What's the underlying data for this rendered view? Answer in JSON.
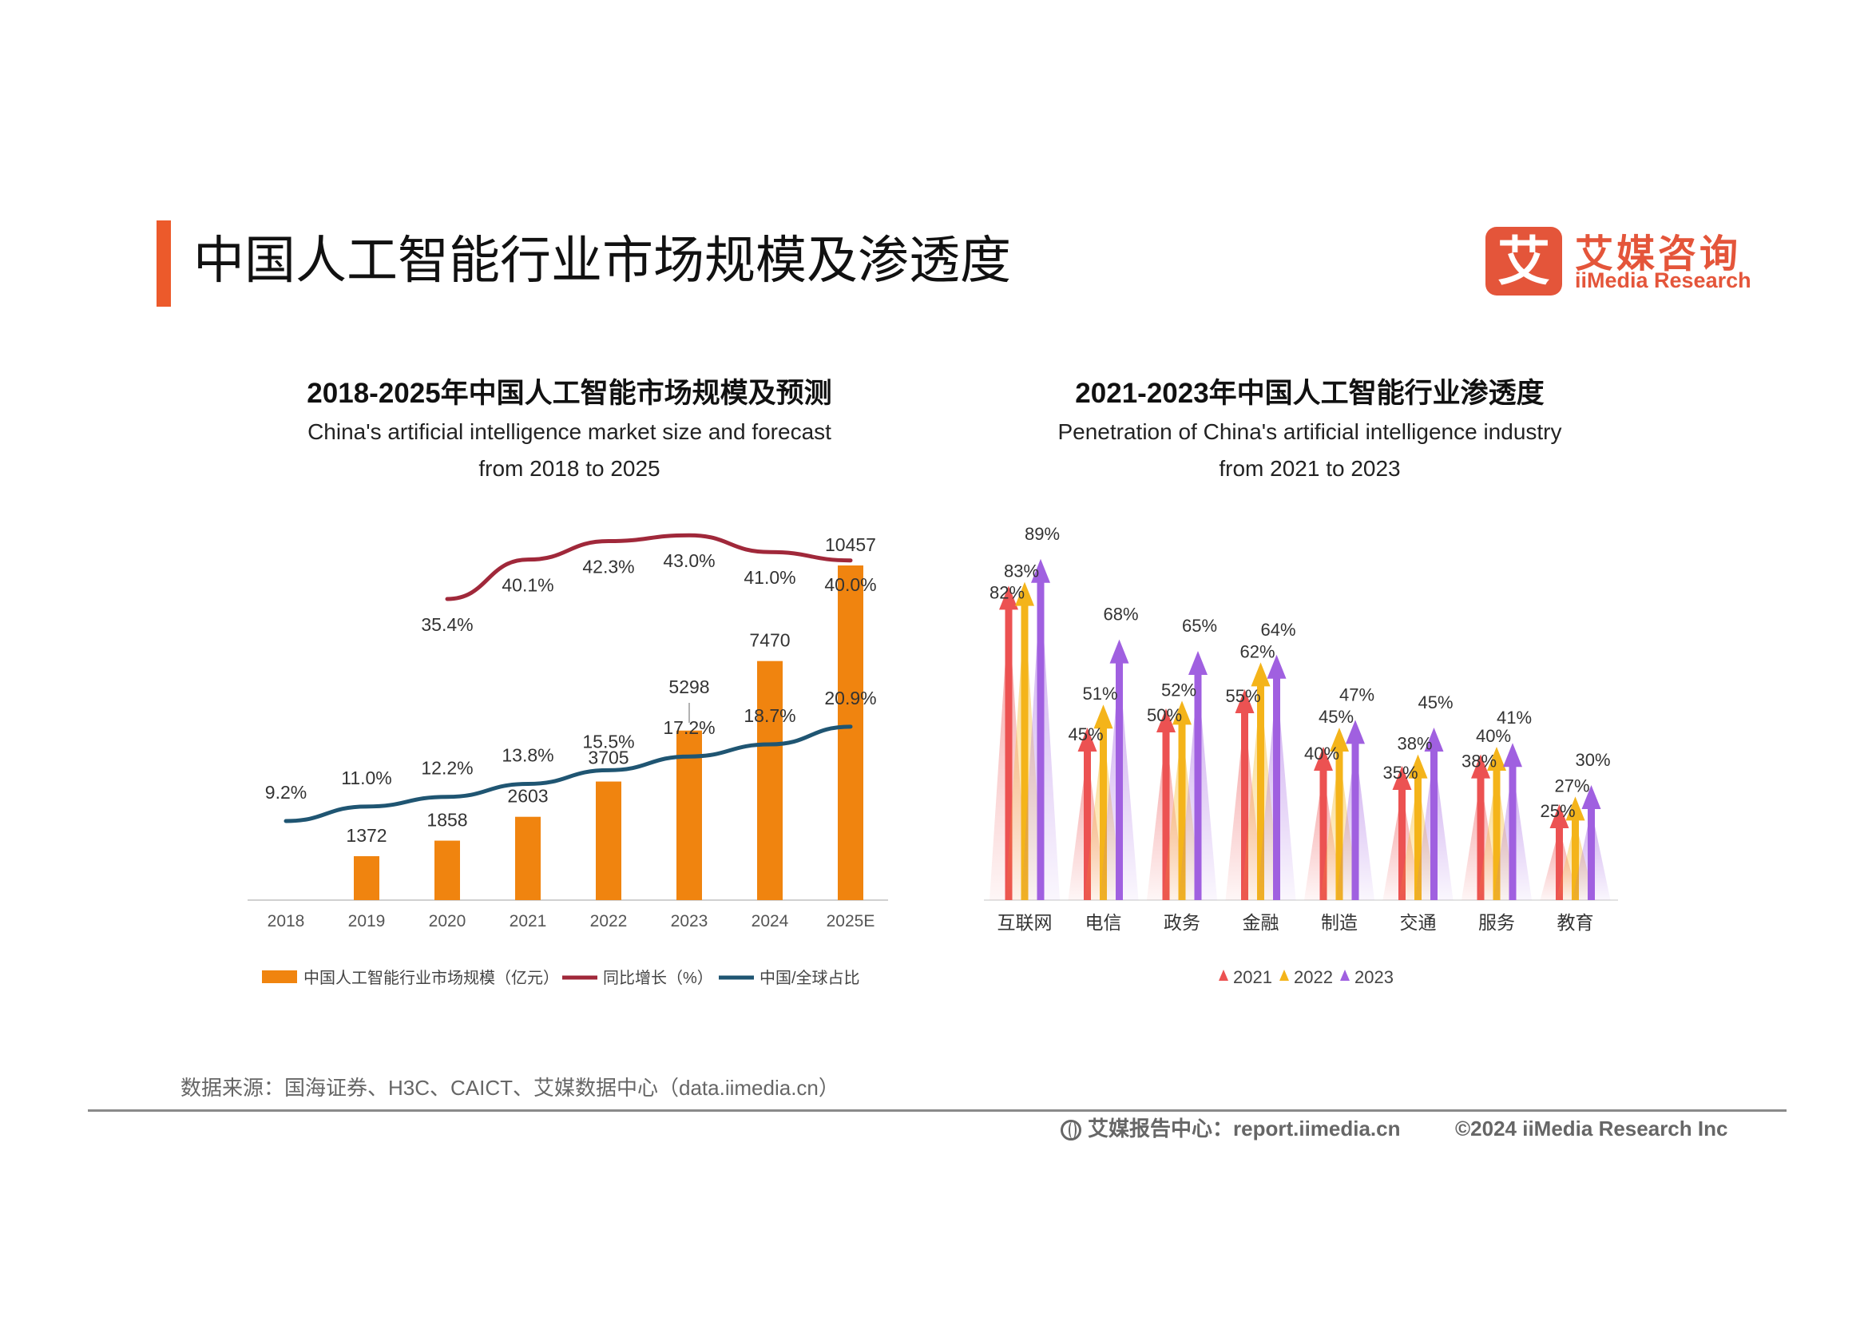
{
  "page": {
    "title": "中国人工智能行业市场规模及渗透度",
    "source": "数据来源：国海证券、H3C、CAICT、艾媒数据中心（data.iimedia.cn）",
    "footer_report": "艾媒报告中心：report.iimedia.cn",
    "footer_copyright": "©2024  iiMedia Research  Inc"
  },
  "logo": {
    "mark": "艾",
    "cn": "艾媒咨询",
    "en": "iiMedia Research"
  },
  "colors": {
    "accent": "#ec5a2b",
    "bar": "#f0840f",
    "growth_line": "#a0283a",
    "share_line": "#1f5572",
    "y2021": "#ec5252",
    "y2022": "#f4b41a",
    "y2023": "#a060e0"
  },
  "chart_data": [
    {
      "type": "bar",
      "title": "2018-2025年中国人工智能市场规模及预测",
      "subtitle_en_1": "China's artificial intelligence market size and forecast",
      "subtitle_en_2": "from 2018 to 2025",
      "categories": [
        "2018",
        "2019",
        "2020",
        "2021",
        "2022",
        "2023",
        "2024",
        "2025E"
      ],
      "series": [
        {
          "name": "中国人工智能行业市场规模（亿元）",
          "kind": "bar",
          "values": [
            null,
            1372,
            1858,
            2603,
            3705,
            5298,
            7470,
            10457
          ],
          "labels": [
            "",
            "1372",
            "1858",
            "2603",
            "3705",
            "5298",
            "7470",
            "10457"
          ]
        },
        {
          "name": "同比增长（%）",
          "kind": "line",
          "values": [
            null,
            null,
            35.4,
            40.1,
            42.3,
            43.0,
            41.0,
            40.0
          ],
          "labels": [
            "",
            "",
            "35.4%",
            "40.1%",
            "42.3%",
            "43.0%",
            "41.0%",
            "40.0%"
          ]
        },
        {
          "name": "中国/全球占比",
          "kind": "line",
          "values": [
            9.2,
            11.0,
            12.2,
            13.8,
            15.5,
            17.2,
            18.7,
            20.9
          ],
          "labels": [
            "9.2%",
            "11.0%",
            "12.2%",
            "13.8%",
            "15.5%",
            "17.2%",
            "18.7%",
            "20.9%"
          ]
        }
      ],
      "ylim_bar": [
        0,
        10457
      ],
      "ylim_growth": [
        30,
        45
      ],
      "ylim_share": [
        0,
        30
      ],
      "legend_position": "bottom"
    },
    {
      "type": "bar",
      "title": "2021-2023年中国人工智能行业渗透度",
      "subtitle_en_1": "Penetration of China's artificial intelligence industry",
      "subtitle_en_2": "from 2021 to 2023",
      "categories": [
        "互联网",
        "电信",
        "政务",
        "金融",
        "制造",
        "交通",
        "服务",
        "教育"
      ],
      "series": [
        {
          "name": "2021",
          "values": [
            82,
            45,
            50,
            55,
            40,
            35,
            38,
            25
          ],
          "labels": [
            "82%",
            "45%",
            "50%",
            "55%",
            "40%",
            "35%",
            "38%",
            "25%"
          ]
        },
        {
          "name": "2022",
          "values": [
            83,
            51,
            52,
            62,
            45,
            38,
            40,
            27
          ],
          "labels": [
            "83%",
            "51%",
            "52%",
            "62%",
            "45%",
            "38%",
            "40%",
            "27%"
          ]
        },
        {
          "name": "2023",
          "values": [
            89,
            68,
            65,
            64,
            47,
            45,
            41,
            30
          ],
          "labels": [
            "89%",
            "68%",
            "65%",
            "64%",
            "47%",
            "45%",
            "41%",
            "30%"
          ]
        }
      ],
      "ylim": [
        0,
        100
      ],
      "legend_position": "bottom"
    }
  ]
}
